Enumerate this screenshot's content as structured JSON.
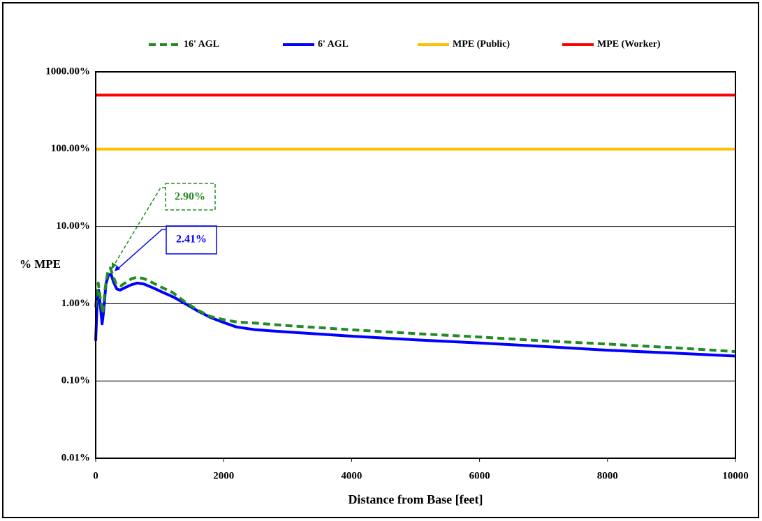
{
  "chart_data": {
    "type": "line",
    "y_label": "% MPE",
    "x_label": "Distance from Base [feet]",
    "yscale": "log",
    "xlim": [
      0,
      10000
    ],
    "xticks": [
      0,
      2000,
      4000,
      6000,
      8000,
      10000
    ],
    "ylim": [
      0.01,
      1000
    ],
    "yticks": [
      {
        "value": 0.01,
        "label": "0.01%"
      },
      {
        "value": 0.1,
        "label": "0.10%"
      },
      {
        "value": 1,
        "label": "1.00%"
      },
      {
        "value": 10,
        "label": "10.00%"
      },
      {
        "value": 100,
        "label": "100.00%"
      },
      {
        "value": 1000,
        "label": "1000.00%"
      }
    ],
    "grid": true,
    "legend": "top",
    "series": [
      {
        "name": "16' AGL",
        "color": "#228b22",
        "linestyle": "dashed",
        "x": [
          0,
          20,
          40,
          70,
          110,
          150,
          190,
          230,
          270,
          320,
          390,
          480,
          560,
          650,
          760,
          900,
          1050,
          1200,
          1400,
          1600,
          1800,
          2000,
          2200,
          2500,
          3000,
          4000,
          5000,
          6000,
          7000,
          8000,
          9000,
          10000
        ],
        "values": [
          0.9,
          1.3,
          1.85,
          1.2,
          0.75,
          1.6,
          2.6,
          2.9,
          2.3,
          1.8,
          1.7,
          1.9,
          2.1,
          2.2,
          2.1,
          1.85,
          1.6,
          1.4,
          1.05,
          0.82,
          0.68,
          0.62,
          0.58,
          0.56,
          0.52,
          0.46,
          0.41,
          0.37,
          0.33,
          0.3,
          0.27,
          0.24
        ]
      },
      {
        "name": "6' AGL",
        "color": "#0000ff",
        "linestyle": "solid",
        "x": [
          0,
          20,
          45,
          70,
          100,
          125,
          160,
          200,
          240,
          280,
          330,
          380,
          450,
          550,
          650,
          750,
          900,
          1050,
          1230,
          1400,
          1600,
          1800,
          2000,
          2200,
          2500,
          3000,
          4000,
          5000,
          6000,
          7000,
          8000,
          9000,
          10000
        ],
        "values": [
          0.33,
          0.9,
          1.5,
          1.0,
          0.55,
          0.8,
          1.8,
          2.35,
          2.41,
          1.9,
          1.55,
          1.5,
          1.6,
          1.75,
          1.85,
          1.8,
          1.6,
          1.4,
          1.2,
          1.0,
          0.8,
          0.66,
          0.57,
          0.5,
          0.46,
          0.43,
          0.38,
          0.34,
          0.31,
          0.28,
          0.25,
          0.23,
          0.21
        ]
      },
      {
        "name": "MPE (Public)",
        "color": "#ffc000",
        "linestyle": "solid",
        "x": [
          0,
          10000
        ],
        "values": [
          100,
          100
        ]
      },
      {
        "name": "MPE (Worker)",
        "color": "#ff0000",
        "linestyle": "solid",
        "x": [
          0,
          10000
        ],
        "values": [
          500,
          500
        ]
      }
    ],
    "annotations": [
      {
        "text": "2.90%",
        "color": "#228b22"
      },
      {
        "text": "2.41%",
        "color": "#0000ff"
      }
    ]
  }
}
